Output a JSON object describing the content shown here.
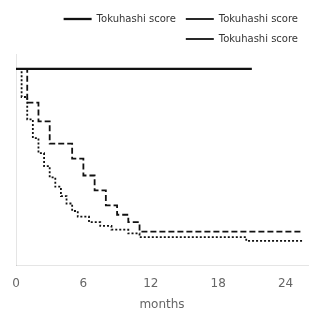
{
  "chart_data": {
    "type": "line",
    "xlabel": "months",
    "xlim": [
      0,
      26
    ],
    "xticks": [
      0,
      6,
      12,
      18,
      24
    ],
    "ylim": [
      -0.05,
      1.08
    ],
    "yticks": [],
    "tick_labels": "x",
    "grid": false,
    "legend": "upper right",
    "series": [
      {
        "name": "Tokuhashi score",
        "color": "#111111",
        "line_style": "solid",
        "x": [
          0,
          21
        ],
        "values": [
          1.0,
          1.0
        ]
      },
      {
        "name": "Tokuhashi score",
        "color": "#111111",
        "line_style": "dashed",
        "x": [
          0,
          1,
          1,
          2,
          2,
          3,
          3,
          5,
          5,
          6,
          6,
          7,
          7,
          8,
          8,
          9,
          9,
          10,
          10,
          11,
          11,
          25.5
        ],
        "values": [
          1.0,
          1.0,
          0.82,
          0.82,
          0.72,
          0.72,
          0.6,
          0.6,
          0.52,
          0.52,
          0.43,
          0.43,
          0.35,
          0.35,
          0.27,
          0.27,
          0.22,
          0.22,
          0.18,
          0.18,
          0.13,
          0.13
        ]
      },
      {
        "name": "Tokuhashi score",
        "color": "#111111",
        "line_style": "dotted",
        "x": [
          0,
          0.5,
          0.5,
          1.0,
          1.0,
          1.5,
          1.5,
          2.0,
          2.0,
          2.5,
          2.5,
          3.0,
          3.0,
          3.5,
          3.5,
          4.0,
          4.0,
          4.5,
          4.5,
          5.0,
          5.0,
          5.5,
          5.5,
          6.5,
          6.5,
          7.5,
          7.5,
          8.5,
          8.5,
          10.0,
          10.0,
          11.0,
          11.0,
          20.5,
          20.5,
          25.5
        ],
        "values": [
          1.0,
          1.0,
          0.85,
          0.85,
          0.73,
          0.73,
          0.63,
          0.63,
          0.55,
          0.55,
          0.48,
          0.48,
          0.42,
          0.42,
          0.37,
          0.37,
          0.32,
          0.32,
          0.28,
          0.28,
          0.24,
          0.24,
          0.21,
          0.21,
          0.18,
          0.18,
          0.16,
          0.16,
          0.14,
          0.14,
          0.12,
          0.12,
          0.1,
          0.1,
          0.08,
          0.08
        ]
      }
    ]
  }
}
